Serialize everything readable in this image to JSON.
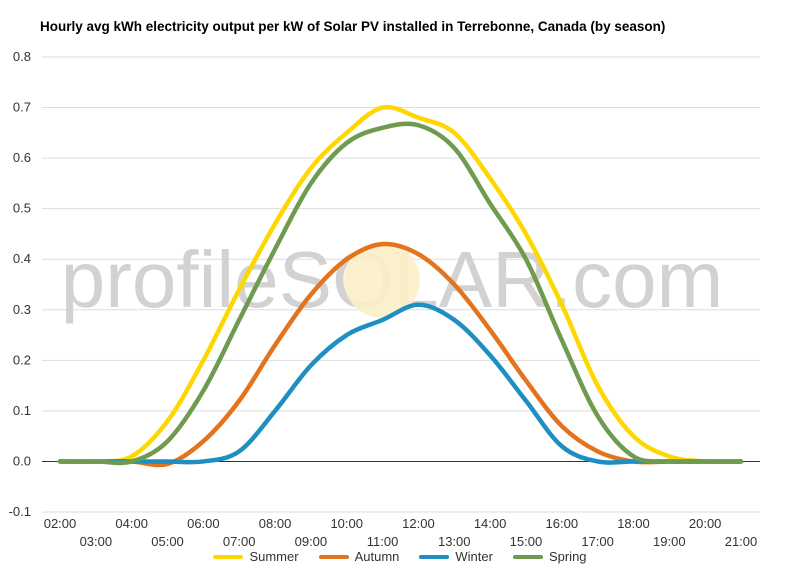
{
  "chart_data": {
    "type": "line",
    "title": "Hourly avg kWh electricity output per kW of Solar PV installed in Terrebonne, Canada (by season)",
    "watermark": "profileSOLAR.com",
    "xlabel": "",
    "ylabel": "",
    "ylim": [
      -0.1,
      0.8
    ],
    "yticks": [
      "-0.1",
      "0.0",
      "0.1",
      "0.2",
      "0.3",
      "0.4",
      "0.5",
      "0.6",
      "0.7",
      "0.8"
    ],
    "x": [
      "02:00",
      "03:00",
      "04:00",
      "05:00",
      "06:00",
      "07:00",
      "08:00",
      "09:00",
      "10:00",
      "11:00",
      "12:00",
      "13:00",
      "14:00",
      "15:00",
      "16:00",
      "17:00",
      "18:00",
      "19:00",
      "20:00",
      "21:00"
    ],
    "grid": true,
    "legend_position": "bottom",
    "series": [
      {
        "name": "Summer",
        "color": "#FFD700",
        "values": [
          0.0,
          0.0,
          0.01,
          0.08,
          0.2,
          0.34,
          0.47,
          0.58,
          0.65,
          0.7,
          0.68,
          0.65,
          0.56,
          0.45,
          0.31,
          0.15,
          0.05,
          0.01,
          0.0,
          0.0
        ]
      },
      {
        "name": "Autumn",
        "color": "#E3731C",
        "values": [
          0.0,
          0.0,
          0.0,
          -0.005,
          0.04,
          0.12,
          0.23,
          0.33,
          0.4,
          0.43,
          0.41,
          0.35,
          0.26,
          0.16,
          0.07,
          0.02,
          0.0,
          0.0,
          0.0,
          0.0
        ]
      },
      {
        "name": "Winter",
        "color": "#1F8FC2",
        "values": [
          0.0,
          0.0,
          0.0,
          0.0,
          0.0,
          0.02,
          0.1,
          0.19,
          0.25,
          0.28,
          0.31,
          0.28,
          0.21,
          0.12,
          0.03,
          0.0,
          0.0,
          0.0,
          0.0,
          0.0
        ]
      },
      {
        "name": "Spring",
        "color": "#6E9B4E",
        "values": [
          0.0,
          0.0,
          0.0,
          0.04,
          0.14,
          0.28,
          0.42,
          0.55,
          0.63,
          0.66,
          0.665,
          0.62,
          0.51,
          0.4,
          0.24,
          0.09,
          0.01,
          0.0,
          0.0,
          0.0
        ]
      }
    ]
  }
}
